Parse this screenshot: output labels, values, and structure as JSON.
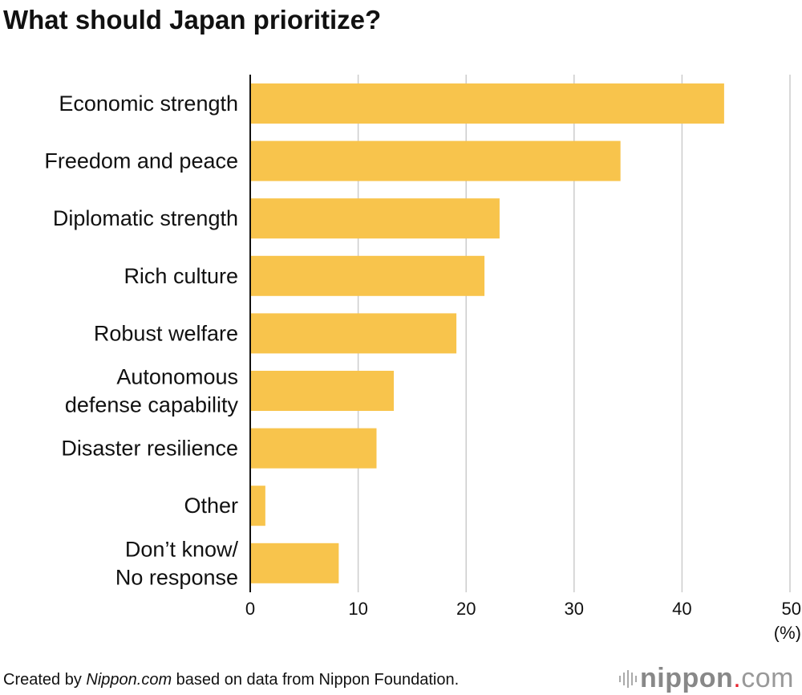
{
  "chart_data": {
    "type": "bar",
    "orientation": "horizontal",
    "title": "What should Japan prioritize?",
    "categories": [
      "Economic strength",
      "Freedom and peace",
      "Diplomatic strength",
      "Rich culture",
      "Robust welfare",
      "Autonomous defense capability",
      "Disaster resilience",
      "Other",
      "Don’t know/ No response"
    ],
    "category_lines": [
      [
        "Economic strength"
      ],
      [
        "Freedom and peace"
      ],
      [
        "Diplomatic strength"
      ],
      [
        "Rich culture"
      ],
      [
        "Robust welfare"
      ],
      [
        "Autonomous",
        "defense capability"
      ],
      [
        "Disaster resilience"
      ],
      [
        "Other"
      ],
      [
        "Don’t know/",
        "No response"
      ]
    ],
    "values": [
      43.9,
      34.3,
      23.1,
      21.7,
      19.1,
      13.3,
      11.7,
      1.4,
      8.2
    ],
    "xlim": [
      0,
      50
    ],
    "xticks": [
      0,
      10,
      20,
      30,
      40,
      50
    ],
    "xunit": "(%)",
    "grid": true,
    "bar_color": "#f8c44c",
    "grid_color": "#cccccc"
  },
  "footer": {
    "prefix": "Created by ",
    "source_name": "Nippon.com",
    "suffix": " based on data from Nippon Foundation."
  },
  "logo": {
    "text": "nippon.com"
  }
}
